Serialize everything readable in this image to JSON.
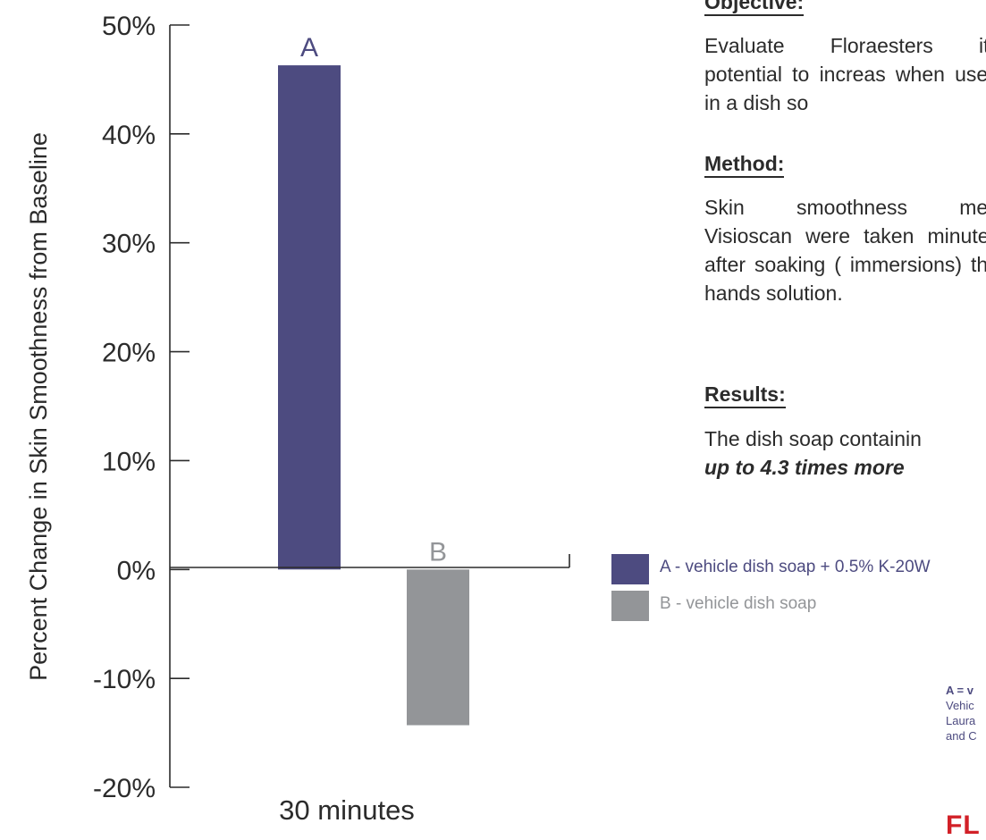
{
  "chart_data": {
    "type": "bar",
    "categories": [
      "30 minutes"
    ],
    "series": [
      {
        "name": "A - vehicle dish soap + 0.5% K-20W",
        "label": "A",
        "values": [
          46.3
        ],
        "color": "#4d4b80"
      },
      {
        "name": "B - vehicle dish soap",
        "label": "B",
        "values": [
          -14.3
        ],
        "color": "#939598"
      }
    ],
    "xlabel": "30 minutes",
    "ylabel": "Percent Change in Skin Smoothness from Baseline",
    "ylim": [
      -20,
      50
    ],
    "yticks": [
      50,
      40,
      30,
      20,
      10,
      0,
      -10,
      -20
    ],
    "ytick_labels": [
      "50%",
      "40%",
      "30%",
      "20%",
      "10%",
      "0%",
      "-10%",
      "-20%"
    ],
    "grid": false,
    "legend_position": "right"
  },
  "side_panel": {
    "objective_heading": "Objective:",
    "objective_text": "Evaluate Floraesters its potential to increas when used in a dish so",
    "method_heading": "Method:",
    "method_text": "Skin smoothness mea Visioscan were taken minutes after soaking ( immersions) the hands solution.",
    "results_heading": "Results:",
    "results_text": "The dish soap containin",
    "results_emphasis": "up to 4.3 times more"
  },
  "legend": {
    "a_label": "A - vehicle dish soap + 0.5% K-20W",
    "b_label": "B - vehicle dish soap",
    "a_color": "#4d4b80",
    "b_color": "#939598"
  },
  "reference": {
    "bold_line": "A = v",
    "line1": "Vehic",
    "line2": "Laura",
    "line3": "and C"
  },
  "logo_text": "FL"
}
